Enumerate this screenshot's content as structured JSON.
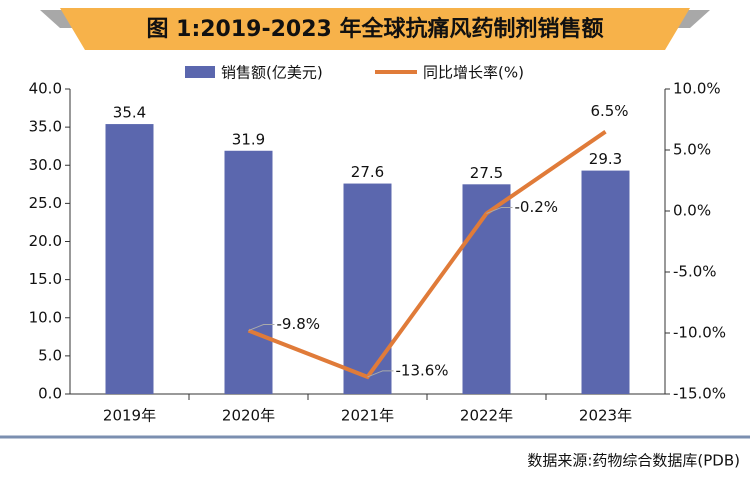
{
  "chart_data": {
    "type": "bar",
    "title": "图 1:2019-2023 年全球抗痛风药制剂销售额",
    "source": "数据来源:药物综合数据库(PDB)",
    "categories": [
      "2019年",
      "2020年",
      "2021年",
      "2022年",
      "2023年"
    ],
    "series": [
      {
        "name": "销售额(亿美元)",
        "type": "bar",
        "color": "#5b67ae",
        "values": [
          35.4,
          31.9,
          27.6,
          27.5,
          29.3
        ]
      },
      {
        "name": "同比增长率(%)",
        "type": "line",
        "axis": "y2",
        "color": "#e07b39",
        "values": [
          null,
          -9.8,
          -13.6,
          -0.2,
          6.5
        ],
        "value_labels": [
          null,
          "-9.8%",
          "-13.6%",
          "-0.2%",
          "6.5%"
        ]
      }
    ],
    "ylim": [
      0,
      40
    ],
    "yticks": [
      {
        "value": 0,
        "label": "0.0"
      },
      {
        "value": 5,
        "label": "5.0"
      },
      {
        "value": 10,
        "label": "10.0"
      },
      {
        "value": 15,
        "label": "15.0"
      },
      {
        "value": 20,
        "label": "20.0"
      },
      {
        "value": 25,
        "label": "25.0"
      },
      {
        "value": 30,
        "label": "30.0"
      },
      {
        "value": 35,
        "label": "35.0"
      },
      {
        "value": 40,
        "label": "40.0"
      }
    ],
    "y2lim": [
      -15,
      10
    ],
    "y2ticks": [
      {
        "value": -15,
        "label": "-15.0%"
      },
      {
        "value": -10,
        "label": "-10.0%"
      },
      {
        "value": -5,
        "label": "-5.0%"
      },
      {
        "value": 0,
        "label": "0.0%"
      },
      {
        "value": 5,
        "label": "5.0%"
      },
      {
        "value": 10,
        "label": "10.0%"
      }
    ],
    "legend": "top"
  }
}
